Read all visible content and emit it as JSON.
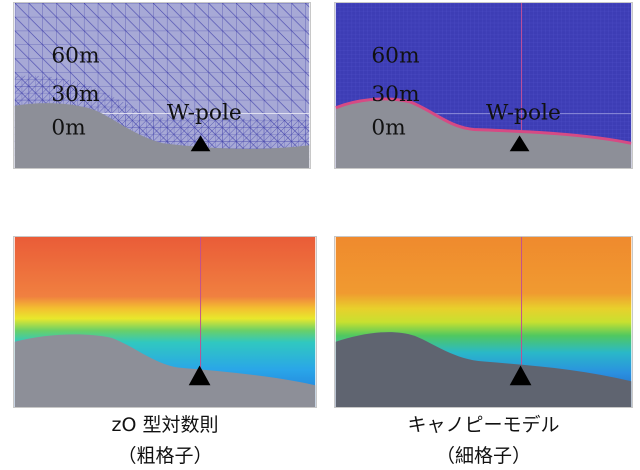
{
  "panels": {
    "coarse_mesh": {
      "height_labels": [
        "60m",
        "30m",
        "0m"
      ],
      "pole_label": "W-pole",
      "colors": {
        "sky": "#a7a9d6",
        "mesh": "#3a3aa8",
        "ground": "#8d8f98"
      }
    },
    "fine_mesh": {
      "height_labels": [
        "60m",
        "30m",
        "0m"
      ],
      "pole_label": "W-pole",
      "colors": {
        "sky": "#3d3db5",
        "surface": "#d64a84",
        "ground": "#8d8f98"
      }
    },
    "coarse_result": {
      "colors": {
        "top": "#ea5c38",
        "mid": "#f3d12a",
        "low": "#2aa6e8",
        "ground": "#8d8f98"
      }
    },
    "fine_result": {
      "colors": {
        "top": "#ef8a2e",
        "mid": "#e2e02a",
        "low": "#2aa0e8",
        "ground": "#5f6470"
      }
    }
  },
  "captions": {
    "left_title": "zO 型対数則",
    "left_sub": "（粗格子）",
    "right_title": "キャノピーモデル",
    "right_sub": "（細格子）"
  }
}
